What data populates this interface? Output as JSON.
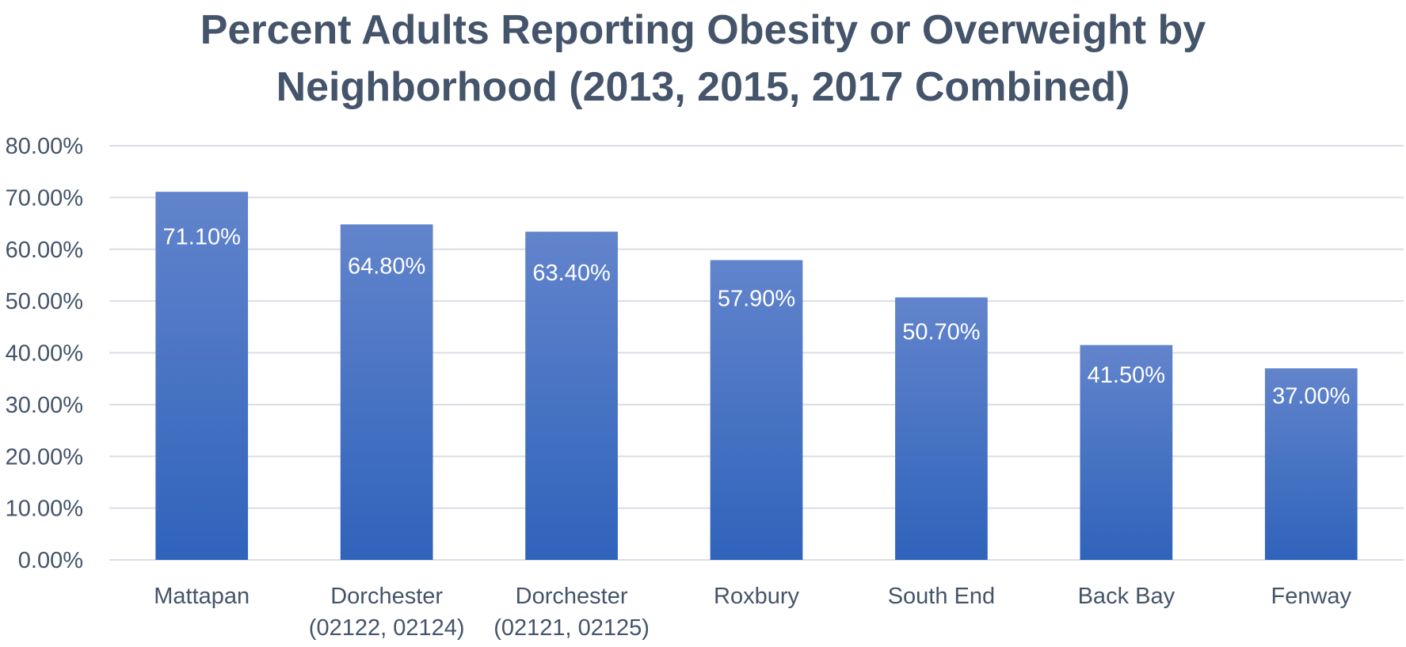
{
  "chart_data": {
    "type": "bar",
    "title": "Percent Adults Reporting Obesity or Overweight by Neighborhood (2013, 2015, 2017 Combined)",
    "title_lines": [
      "Percent Adults Reporting Obesity or Overweight by",
      "Neighborhood (2013, 2015, 2017 Combined)"
    ],
    "categories": [
      [
        "Mattapan"
      ],
      [
        "Dorchester",
        "(02122, 02124)"
      ],
      [
        "Dorchester",
        "(02121, 02125)"
      ],
      [
        "Roxbury"
      ],
      [
        "South End"
      ],
      [
        "Back Bay"
      ],
      [
        "Fenway"
      ]
    ],
    "values": [
      71.1,
      64.8,
      63.4,
      57.9,
      50.7,
      41.5,
      37.0
    ],
    "data_labels": [
      "71.10%",
      "64.80%",
      "63.40%",
      "57.90%",
      "50.70%",
      "41.50%",
      "37.00%"
    ],
    "ylim": [
      0,
      80
    ],
    "y_ticks": [
      0,
      10,
      20,
      30,
      40,
      50,
      60,
      70,
      80
    ],
    "y_tick_labels": [
      "0.00%",
      "10.00%",
      "20.00%",
      "30.00%",
      "40.00%",
      "50.00%",
      "60.00%",
      "70.00%",
      "80.00%"
    ],
    "xlabel": "",
    "ylabel": "",
    "grid": true,
    "legend": "none",
    "colors": {
      "bar_top": "#6284cc",
      "bar_bottom": "#2f63bb",
      "grid": "#d9dde6",
      "text": "#44546a",
      "data_label": "#ffffff"
    }
  }
}
